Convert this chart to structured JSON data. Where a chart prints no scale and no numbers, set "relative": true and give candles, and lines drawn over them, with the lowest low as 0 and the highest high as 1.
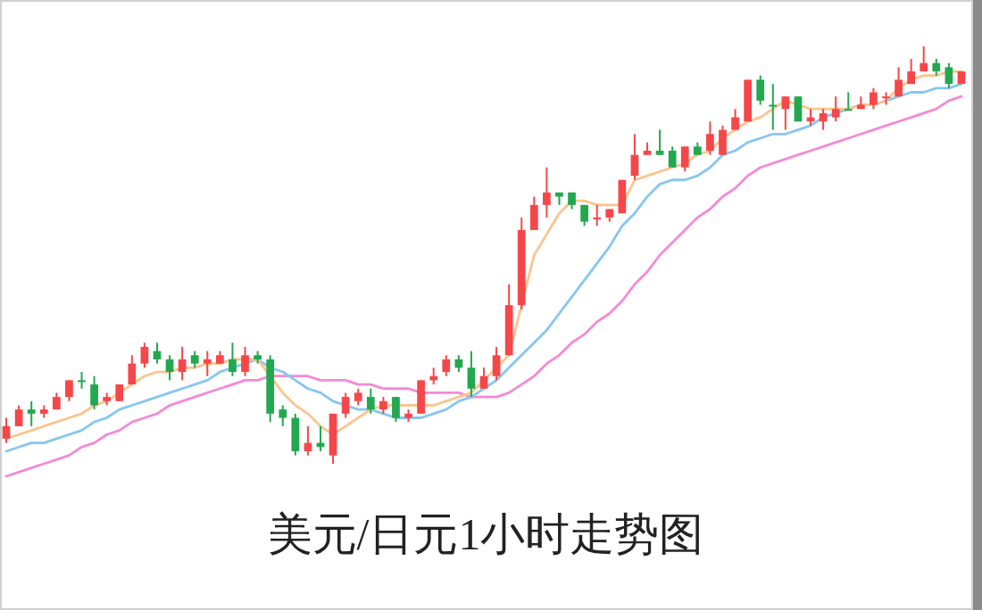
{
  "chart_data": {
    "type": "candlestick",
    "title": "美元/日元1小时走势图",
    "relative": true,
    "categories": [
      null,
      null,
      null,
      null,
      null,
      null,
      null,
      null,
      null,
      null,
      null,
      null,
      null,
      null,
      null,
      null,
      null,
      null,
      null,
      null,
      null,
      null,
      null,
      null,
      null,
      null,
      null,
      null,
      null,
      null,
      null,
      null,
      null,
      null,
      null,
      null,
      null,
      null,
      null,
      null,
      null,
      null,
      null,
      null,
      null,
      null,
      null,
      null,
      null,
      null,
      null,
      null,
      null,
      null,
      null,
      null,
      null,
      null,
      null,
      null,
      null,
      null,
      null,
      null,
      null,
      null,
      null,
      null,
      null,
      null,
      null,
      null,
      null,
      null,
      null,
      null,
      null
    ],
    "ohlc": [
      [
        0.06,
        0.11,
        0.05,
        0.09
      ],
      [
        0.09,
        0.14,
        0.09,
        0.13
      ],
      [
        0.13,
        0.15,
        0.09,
        0.12
      ],
      [
        0.12,
        0.14,
        0.11,
        0.13
      ],
      [
        0.13,
        0.17,
        0.13,
        0.16
      ],
      [
        0.16,
        0.2,
        0.15,
        0.2
      ],
      [
        0.2,
        0.22,
        0.18,
        0.2
      ],
      [
        0.19,
        0.21,
        0.13,
        0.14
      ],
      [
        0.15,
        0.17,
        0.14,
        0.16
      ],
      [
        0.15,
        0.19,
        0.15,
        0.19
      ],
      [
        0.19,
        0.26,
        0.19,
        0.24
      ],
      [
        0.24,
        0.29,
        0.23,
        0.28
      ],
      [
        0.27,
        0.29,
        0.24,
        0.25
      ],
      [
        0.25,
        0.26,
        0.2,
        0.22
      ],
      [
        0.22,
        0.28,
        0.2,
        0.25
      ],
      [
        0.26,
        0.27,
        0.23,
        0.24
      ],
      [
        0.24,
        0.27,
        0.21,
        0.25
      ],
      [
        0.24,
        0.27,
        0.24,
        0.26
      ],
      [
        0.25,
        0.29,
        0.21,
        0.22
      ],
      [
        0.22,
        0.28,
        0.21,
        0.26
      ],
      [
        0.26,
        0.27,
        0.24,
        0.25
      ],
      [
        0.25,
        0.26,
        0.1,
        0.12
      ],
      [
        0.13,
        0.14,
        0.09,
        0.11
      ],
      [
        0.11,
        0.12,
        0.02,
        0.03
      ],
      [
        0.03,
        0.09,
        0.02,
        0.05
      ],
      [
        0.05,
        0.09,
        0.03,
        0.04
      ],
      [
        0.02,
        0.12,
        0,
        0.12
      ],
      [
        0.12,
        0.17,
        0.11,
        0.16
      ],
      [
        0.15,
        0.18,
        0.14,
        0.17
      ],
      [
        0.16,
        0.18,
        0.12,
        0.13
      ],
      [
        0.13,
        0.16,
        0.12,
        0.15
      ],
      [
        0.16,
        0.16,
        0.1,
        0.11
      ],
      [
        0.11,
        0.13,
        0.1,
        0.12
      ],
      [
        0.12,
        0.2,
        0.12,
        0.2
      ],
      [
        0.2,
        0.23,
        0.19,
        0.21
      ],
      [
        0.22,
        0.26,
        0.21,
        0.25
      ],
      [
        0.25,
        0.26,
        0.22,
        0.23
      ],
      [
        0.23,
        0.27,
        0.16,
        0.18
      ],
      [
        0.18,
        0.23,
        0.18,
        0.21
      ],
      [
        0.21,
        0.28,
        0.2,
        0.26
      ],
      [
        0.26,
        0.43,
        0.26,
        0.38
      ],
      [
        0.38,
        0.59,
        0.37,
        0.56
      ],
      [
        0.56,
        0.64,
        0.56,
        0.62
      ],
      [
        0.62,
        0.71,
        0.59,
        0.65
      ],
      [
        0.65,
        0.65,
        0.62,
        0.64
      ],
      [
        0.65,
        0.65,
        0.61,
        0.62
      ],
      [
        0.62,
        0.62,
        0.57,
        0.58
      ],
      [
        0.59,
        0.62,
        0.57,
        0.59
      ],
      [
        0.59,
        0.61,
        0.58,
        0.61
      ],
      [
        0.6,
        0.68,
        0.6,
        0.68
      ],
      [
        0.69,
        0.79,
        0.68,
        0.74
      ],
      [
        0.74,
        0.77,
        0.74,
        0.75
      ],
      [
        0.75,
        0.8,
        0.74,
        0.74
      ],
      [
        0.75,
        0.76,
        0.71,
        0.71
      ],
      [
        0.71,
        0.76,
        0.7,
        0.76
      ],
      [
        0.76,
        0.77,
        0.74,
        0.74
      ],
      [
        0.75,
        0.82,
        0.74,
        0.79
      ],
      [
        0.74,
        0.81,
        0.74,
        0.8
      ],
      [
        0.8,
        0.85,
        0.8,
        0.83
      ],
      [
        0.82,
        0.92,
        0.82,
        0.92
      ],
      [
        0.92,
        0.93,
        0.86,
        0.87
      ],
      [
        0.86,
        0.91,
        0.8,
        0.86
      ],
      [
        0.85,
        0.88,
        0.8,
        0.88
      ],
      [
        0.88,
        0.88,
        0.82,
        0.82
      ],
      [
        0.82,
        0.85,
        0.81,
        0.83
      ],
      [
        0.82,
        0.85,
        0.8,
        0.84
      ],
      [
        0.83,
        0.88,
        0.82,
        0.85
      ],
      [
        0.85,
        0.89,
        0.85,
        0.85
      ],
      [
        0.85,
        0.88,
        0.85,
        0.86
      ],
      [
        0.86,
        0.9,
        0.85,
        0.89
      ],
      [
        0.88,
        0.89,
        0.86,
        0.88
      ],
      [
        0.88,
        0.95,
        0.88,
        0.92
      ],
      [
        0.91,
        0.97,
        0.91,
        0.94
      ],
      [
        0.94,
        1.0,
        0.94,
        0.96
      ],
      [
        0.96,
        0.97,
        0.93,
        0.94
      ],
      [
        0.95,
        0.96,
        0.9,
        0.91
      ],
      [
        0.91,
        0.94,
        0.91,
        0.94
      ]
    ],
    "colors": [
      "#f5474a",
      "#f5474a",
      "#22a84f",
      "#f5474a",
      "#f5474a",
      "#f5474a",
      "#22a84f",
      "#22a84f",
      "#f5474a",
      "#f5474a",
      "#f5474a",
      "#f5474a",
      "#22a84f",
      "#22a84f",
      "#f5474a",
      "#22a84f",
      "#f5474a",
      "#f5474a",
      "#22a84f",
      "#f5474a",
      "#22a84f",
      "#22a84f",
      "#22a84f",
      "#22a84f",
      "#f5474a",
      "#22a84f",
      "#f5474a",
      "#f5474a",
      "#f5474a",
      "#22a84f",
      "#f5474a",
      "#22a84f",
      "#f5474a",
      "#f5474a",
      "#f5474a",
      "#f5474a",
      "#22a84f",
      "#22a84f",
      "#f5474a",
      "#f5474a",
      "#f5474a",
      "#f5474a",
      "#f5474a",
      "#f5474a",
      "#22a84f",
      "#22a84f",
      "#22a84f",
      "#f5474a",
      "#f5474a",
      "#f5474a",
      "#f5474a",
      "#f5474a",
      "#22a84f",
      "#22a84f",
      "#f5474a",
      "#22a84f",
      "#f5474a",
      "#f5474a",
      "#f5474a",
      "#f5474a",
      "#22a84f",
      "#22a84f",
      "#f5474a",
      "#22a84f",
      "#f5474a",
      "#f5474a",
      "#f5474a",
      "#22a84f",
      "#f5474a",
      "#f5474a",
      "#f5474a",
      "#f5474a",
      "#f5474a",
      "#f5474a",
      "#22a84f",
      "#22a84f",
      "#f5474a"
    ],
    "series": [
      {
        "type": "line",
        "color": "#f48ad6",
        "values": [
          -0.03,
          -0.02,
          -0.01,
          0.0,
          0.01,
          0.02,
          0.04,
          0.05,
          0.07,
          0.08,
          0.1,
          0.11,
          0.12,
          0.14,
          0.15,
          0.16,
          0.17,
          0.18,
          0.19,
          0.2,
          0.2,
          0.21,
          0.21,
          0.21,
          0.21,
          0.2,
          0.2,
          0.2,
          0.19,
          0.19,
          0.18,
          0.18,
          0.18,
          0.17,
          0.17,
          0.17,
          0.17,
          0.16,
          0.16,
          0.16,
          0.17,
          0.19,
          0.21,
          0.24,
          0.26,
          0.29,
          0.31,
          0.34,
          0.36,
          0.39,
          0.43,
          0.46,
          0.5,
          0.53,
          0.56,
          0.59,
          0.61,
          0.64,
          0.66,
          0.69,
          0.71,
          0.72,
          0.73,
          0.74,
          0.75,
          0.76,
          0.77,
          0.78,
          0.79,
          0.8,
          0.81,
          0.82,
          0.83,
          0.84,
          0.85,
          0.87,
          0.88
        ]
      },
      {
        "type": "line",
        "color": "#86c6f2",
        "values": [
          0.03,
          0.04,
          0.05,
          0.05,
          0.06,
          0.07,
          0.08,
          0.1,
          0.11,
          0.13,
          0.14,
          0.15,
          0.16,
          0.17,
          0.18,
          0.19,
          0.2,
          0.22,
          0.23,
          0.24,
          0.25,
          0.23,
          0.22,
          0.2,
          0.18,
          0.17,
          0.15,
          0.14,
          0.13,
          0.13,
          0.12,
          0.11,
          0.11,
          0.11,
          0.12,
          0.13,
          0.15,
          0.16,
          0.18,
          0.2,
          0.23,
          0.26,
          0.29,
          0.32,
          0.36,
          0.4,
          0.44,
          0.48,
          0.52,
          0.57,
          0.6,
          0.64,
          0.67,
          0.68,
          0.68,
          0.69,
          0.71,
          0.74,
          0.75,
          0.77,
          0.78,
          0.79,
          0.79,
          0.8,
          0.81,
          0.83,
          0.84,
          0.85,
          0.86,
          0.86,
          0.87,
          0.88,
          0.89,
          0.89,
          0.9,
          0.9,
          0.91
        ]
      },
      {
        "type": "line",
        "color": "#fcc48e",
        "values": [
          0.06,
          0.07,
          0.08,
          0.09,
          0.1,
          0.11,
          0.12,
          0.14,
          0.15,
          0.17,
          0.19,
          0.21,
          0.22,
          0.22,
          0.23,
          0.23,
          0.24,
          0.24,
          0.25,
          0.25,
          0.25,
          0.21,
          0.17,
          0.14,
          0.12,
          0.09,
          0.07,
          0.09,
          0.11,
          0.13,
          0.14,
          0.14,
          0.14,
          0.14,
          0.14,
          0.15,
          0.16,
          0.17,
          0.2,
          0.23,
          0.26,
          0.38,
          0.5,
          0.55,
          0.6,
          0.63,
          0.63,
          0.62,
          0.62,
          0.62,
          0.68,
          0.69,
          0.7,
          0.71,
          0.72,
          0.74,
          0.75,
          0.78,
          0.8,
          0.82,
          0.83,
          0.85,
          0.87,
          0.86,
          0.85,
          0.85,
          0.85,
          0.85,
          0.86,
          0.86,
          0.87,
          0.9,
          0.92,
          0.93,
          0.93,
          0.94,
          0.94
        ]
      }
    ]
  }
}
